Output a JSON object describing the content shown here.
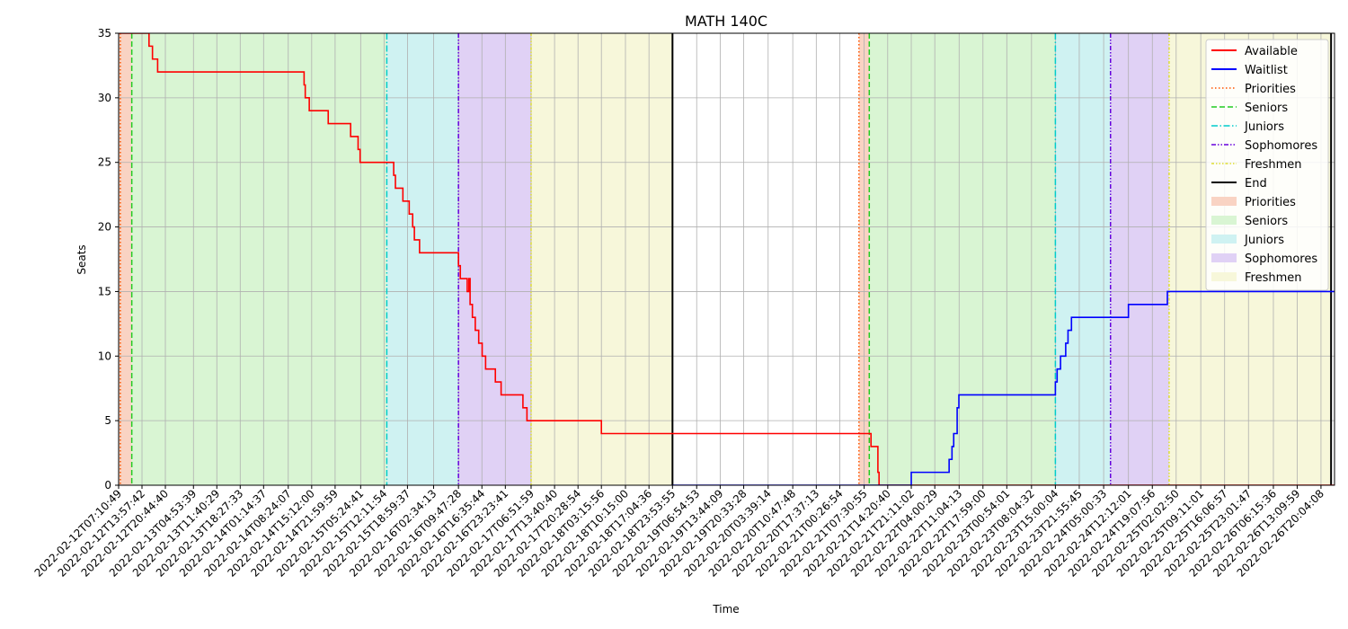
{
  "chart_data": {
    "type": "line",
    "title": "MATH 140C",
    "xlabel": "Time",
    "ylabel": "Seats",
    "ylim": [
      0,
      35
    ],
    "yticks": [
      0,
      5,
      10,
      15,
      20,
      25,
      30,
      35
    ],
    "grid": true,
    "legend_position": "top-right",
    "x_range": [
      "2022-02-12T07:10:49",
      "2022-02-26T23:59:59"
    ],
    "xticks": [
      "2022-02-12T07:10:49",
      "2022-02-12T13:57:42",
      "2022-02-12T20:44:40",
      "2022-02-13T04:53:39",
      "2022-02-13T11:40:29",
      "2022-02-13T18:27:33",
      "2022-02-14T01:14:37",
      "2022-02-14T08:24:07",
      "2022-02-14T15:12:00",
      "2022-02-14T21:59:59",
      "2022-02-15T05:24:41",
      "2022-02-15T12:11:54",
      "2022-02-15T18:59:37",
      "2022-02-16T02:34:13",
      "2022-02-16T09:47:28",
      "2022-02-16T16:35:44",
      "2022-02-16T23:23:41",
      "2022-02-17T06:51:59",
      "2022-02-17T13:40:40",
      "2022-02-17T20:28:54",
      "2022-02-18T03:15:56",
      "2022-02-18T10:15:00",
      "2022-02-18T17:04:36",
      "2022-02-18T23:53:55",
      "2022-02-19T06:54:53",
      "2022-02-19T13:44:09",
      "2022-02-19T20:33:28",
      "2022-02-20T03:39:14",
      "2022-02-20T10:47:48",
      "2022-02-20T17:37:13",
      "2022-02-21T00:26:54",
      "2022-02-21T07:30:55",
      "2022-02-21T14:20:40",
      "2022-02-21T21:11:02",
      "2022-02-22T04:00:29",
      "2022-02-22T11:04:13",
      "2022-02-22T17:59:00",
      "2022-02-23T00:54:01",
      "2022-02-23T08:04:32",
      "2022-02-23T15:00:04",
      "2022-02-23T21:55:45",
      "2022-02-24T05:00:33",
      "2022-02-24T12:12:01",
      "2022-02-24T19:07:56",
      "2022-02-25T02:02:50",
      "2022-02-25T09:11:01",
      "2022-02-25T16:06:57",
      "2022-02-25T23:01:47",
      "2022-02-26T06:15:36",
      "2022-02-26T13:09:59",
      "2022-02-26T20:04:08"
    ],
    "colors": {
      "available": "#ff0000",
      "waitlist": "#0000ff",
      "priorities": "#ff5500",
      "seniors": "#22cc22",
      "juniors": "#00cccc",
      "sophomores": "#6600dd",
      "freshmen": "#dddd33",
      "end": "#000000",
      "priorities_fill": "#f9d3c3",
      "seniors_fill": "#d9f5d3",
      "juniors_fill": "#cff2f2",
      "sophomores_fill": "#e0d1f5",
      "freshmen_fill": "#f7f7da"
    },
    "series": [
      {
        "name": "Available",
        "color_key": "available",
        "points": [
          [
            "2022-02-12T07:10:49",
            35
          ],
          [
            "2022-02-12T16:00:00",
            35
          ],
          [
            "2022-02-12T16:00:00",
            34
          ],
          [
            "2022-02-12T17:00:00",
            34
          ],
          [
            "2022-02-12T17:00:00",
            33
          ],
          [
            "2022-02-12T18:30:00",
            33
          ],
          [
            "2022-02-12T18:30:00",
            32
          ],
          [
            "2022-02-14T13:00:00",
            32
          ],
          [
            "2022-02-14T13:00:00",
            31
          ],
          [
            "2022-02-14T13:20:00",
            31
          ],
          [
            "2022-02-14T13:20:00",
            30
          ],
          [
            "2022-02-14T14:30:00",
            30
          ],
          [
            "2022-02-14T14:30:00",
            29
          ],
          [
            "2022-02-14T20:00:00",
            29
          ],
          [
            "2022-02-14T20:00:00",
            28
          ],
          [
            "2022-02-15T02:30:00",
            28
          ],
          [
            "2022-02-15T02:30:00",
            27
          ],
          [
            "2022-02-15T04:40:00",
            27
          ],
          [
            "2022-02-15T04:40:00",
            26
          ],
          [
            "2022-02-15T05:15:00",
            26
          ],
          [
            "2022-02-15T05:15:00",
            25
          ],
          [
            "2022-02-15T15:00:00",
            25
          ],
          [
            "2022-02-15T15:00:00",
            24
          ],
          [
            "2022-02-15T15:30:00",
            24
          ],
          [
            "2022-02-15T15:30:00",
            23
          ],
          [
            "2022-02-15T17:40:00",
            23
          ],
          [
            "2022-02-15T17:40:00",
            22
          ],
          [
            "2022-02-15T19:30:00",
            22
          ],
          [
            "2022-02-15T19:30:00",
            21
          ],
          [
            "2022-02-15T20:30:00",
            21
          ],
          [
            "2022-02-15T20:30:00",
            20
          ],
          [
            "2022-02-15T21:00:00",
            20
          ],
          [
            "2022-02-15T21:00:00",
            19
          ],
          [
            "2022-02-15T22:30:00",
            19
          ],
          [
            "2022-02-15T22:30:00",
            18
          ],
          [
            "2022-02-16T09:47:28",
            18
          ],
          [
            "2022-02-16T09:47:28",
            17
          ],
          [
            "2022-02-16T10:20:00",
            17
          ],
          [
            "2022-02-16T10:20:00",
            16
          ],
          [
            "2022-02-16T12:20:00",
            16
          ],
          [
            "2022-02-16T12:20:00",
            15
          ],
          [
            "2022-02-16T12:50:00",
            15
          ],
          [
            "2022-02-16T12:50:00",
            16
          ],
          [
            "2022-02-16T13:10:00",
            16
          ],
          [
            "2022-02-16T13:10:00",
            14
          ],
          [
            "2022-02-16T13:50:00",
            14
          ],
          [
            "2022-02-16T13:50:00",
            13
          ],
          [
            "2022-02-16T14:40:00",
            13
          ],
          [
            "2022-02-16T14:40:00",
            12
          ],
          [
            "2022-02-16T15:40:00",
            12
          ],
          [
            "2022-02-16T15:40:00",
            11
          ],
          [
            "2022-02-16T16:40:00",
            11
          ],
          [
            "2022-02-16T16:40:00",
            10
          ],
          [
            "2022-02-16T17:40:00",
            10
          ],
          [
            "2022-02-16T17:40:00",
            9
          ],
          [
            "2022-02-16T20:30:00",
            9
          ],
          [
            "2022-02-16T20:30:00",
            8
          ],
          [
            "2022-02-16T22:10:00",
            8
          ],
          [
            "2022-02-16T22:10:00",
            7
          ],
          [
            "2022-02-17T04:30:00",
            7
          ],
          [
            "2022-02-17T04:30:00",
            6
          ],
          [
            "2022-02-17T05:40:00",
            6
          ],
          [
            "2022-02-17T05:40:00",
            5
          ],
          [
            "2022-02-18T03:15:56",
            5
          ],
          [
            "2022-02-18T03:15:56",
            4
          ],
          [
            "2022-02-21T09:30:00",
            4
          ],
          [
            "2022-02-21T09:30:00",
            3
          ],
          [
            "2022-02-21T11:30:00",
            3
          ],
          [
            "2022-02-21T11:30:00",
            1
          ],
          [
            "2022-02-21T11:50:00",
            1
          ],
          [
            "2022-02-21T11:50:00",
            0
          ],
          [
            "2022-02-26T23:59:59",
            0
          ]
        ]
      },
      {
        "name": "Waitlist",
        "color_key": "waitlist",
        "points": [
          [
            "2022-02-18T23:53:55",
            0
          ],
          [
            "2022-02-21T21:11:02",
            0
          ],
          [
            "2022-02-21T21:11:02",
            1
          ],
          [
            "2022-02-22T08:10:00",
            1
          ],
          [
            "2022-02-22T08:10:00",
            2
          ],
          [
            "2022-02-22T09:00:00",
            2
          ],
          [
            "2022-02-22T09:00:00",
            3
          ],
          [
            "2022-02-22T09:30:00",
            3
          ],
          [
            "2022-02-22T09:30:00",
            4
          ],
          [
            "2022-02-22T10:30:00",
            4
          ],
          [
            "2022-02-22T10:30:00",
            6
          ],
          [
            "2022-02-22T11:00:00",
            6
          ],
          [
            "2022-02-22T11:00:00",
            7
          ],
          [
            "2022-02-23T15:00:04",
            7
          ],
          [
            "2022-02-23T15:00:04",
            8
          ],
          [
            "2022-02-23T15:30:00",
            8
          ],
          [
            "2022-02-23T15:30:00",
            9
          ],
          [
            "2022-02-23T16:30:00",
            9
          ],
          [
            "2022-02-23T16:30:00",
            10
          ],
          [
            "2022-02-23T18:00:00",
            10
          ],
          [
            "2022-02-23T18:00:00",
            11
          ],
          [
            "2022-02-23T18:40:00",
            11
          ],
          [
            "2022-02-23T18:40:00",
            12
          ],
          [
            "2022-02-23T19:40:00",
            12
          ],
          [
            "2022-02-23T19:40:00",
            13
          ],
          [
            "2022-02-24T12:12:01",
            13
          ],
          [
            "2022-02-24T12:12:01",
            14
          ],
          [
            "2022-02-24T23:30:00",
            14
          ],
          [
            "2022-02-24T23:30:00",
            15
          ],
          [
            "2022-02-26T23:59:59",
            15
          ]
        ]
      }
    ],
    "vlines": [
      {
        "label": "Priorities",
        "color_key": "priorities",
        "style": "dotted",
        "at": [
          "2022-02-12T07:40:00",
          "2022-02-21T06:00:00"
        ]
      },
      {
        "label": "Seniors",
        "color_key": "seniors",
        "style": "dashed",
        "at": [
          "2022-02-12T11:00:00",
          "2022-02-21T09:00:00"
        ]
      },
      {
        "label": "Juniors",
        "color_key": "juniors",
        "style": "dashdot",
        "at": [
          "2022-02-15T13:00:00",
          "2022-02-23T15:00:04"
        ]
      },
      {
        "label": "Sophomores",
        "color_key": "sophomores",
        "style": "dashdotdot",
        "at": [
          "2022-02-16T09:47:28",
          "2022-02-24T07:00:00"
        ]
      },
      {
        "label": "Freshmen",
        "color_key": "freshmen",
        "style": "dashdotdotted",
        "at": [
          "2022-02-17T06:51:59",
          "2022-02-25T00:00:00"
        ]
      },
      {
        "label": "End",
        "color_key": "end",
        "style": "solid",
        "at": [
          "2022-02-18T23:53:55",
          "2022-02-26T23:00:00"
        ]
      }
    ],
    "spans": [
      {
        "label": "Priorities",
        "color_key": "priorities_fill",
        "ranges": [
          [
            "2022-02-12T07:10:49",
            "2022-02-12T11:00:00"
          ],
          [
            "2022-02-21T06:00:00",
            "2022-02-21T09:00:00"
          ]
        ]
      },
      {
        "label": "Seniors",
        "color_key": "seniors_fill",
        "ranges": [
          [
            "2022-02-12T11:00:00",
            "2022-02-15T13:00:00"
          ],
          [
            "2022-02-21T09:00:00",
            "2022-02-23T15:00:04"
          ]
        ]
      },
      {
        "label": "Juniors",
        "color_key": "juniors_fill",
        "ranges": [
          [
            "2022-02-15T13:00:00",
            "2022-02-16T09:47:28"
          ],
          [
            "2022-02-23T15:00:04",
            "2022-02-24T07:00:00"
          ]
        ]
      },
      {
        "label": "Sophomores",
        "color_key": "sophomores_fill",
        "ranges": [
          [
            "2022-02-16T09:47:28",
            "2022-02-17T06:51:59"
          ],
          [
            "2022-02-24T07:00:00",
            "2022-02-25T00:00:00"
          ]
        ]
      },
      {
        "label": "Freshmen",
        "color_key": "freshmen_fill",
        "ranges": [
          [
            "2022-02-17T06:51:59",
            "2022-02-18T23:53:55"
          ],
          [
            "2022-02-25T00:00:00",
            "2022-02-26T23:00:00"
          ]
        ]
      }
    ],
    "legend": [
      {
        "label": "Available",
        "kind": "line",
        "color_key": "available",
        "style": "solid"
      },
      {
        "label": "Waitlist",
        "kind": "line",
        "color_key": "waitlist",
        "style": "solid"
      },
      {
        "label": "Priorities",
        "kind": "line",
        "color_key": "priorities",
        "style": "dotted"
      },
      {
        "label": "Seniors",
        "kind": "line",
        "color_key": "seniors",
        "style": "dashed"
      },
      {
        "label": "Juniors",
        "kind": "line",
        "color_key": "juniors",
        "style": "dashdot"
      },
      {
        "label": "Sophomores",
        "kind": "line",
        "color_key": "sophomores",
        "style": "dashdotdot"
      },
      {
        "label": "Freshmen",
        "kind": "line",
        "color_key": "freshmen",
        "style": "dashdotdotted"
      },
      {
        "label": "End",
        "kind": "line",
        "color_key": "end",
        "style": "solid"
      },
      {
        "label": "Priorities",
        "kind": "patch",
        "color_key": "priorities_fill"
      },
      {
        "label": "Seniors",
        "kind": "patch",
        "color_key": "seniors_fill"
      },
      {
        "label": "Juniors",
        "kind": "patch",
        "color_key": "juniors_fill"
      },
      {
        "label": "Sophomores",
        "kind": "patch",
        "color_key": "sophomores_fill"
      },
      {
        "label": "Freshmen",
        "kind": "patch",
        "color_key": "freshmen_fill"
      }
    ]
  }
}
